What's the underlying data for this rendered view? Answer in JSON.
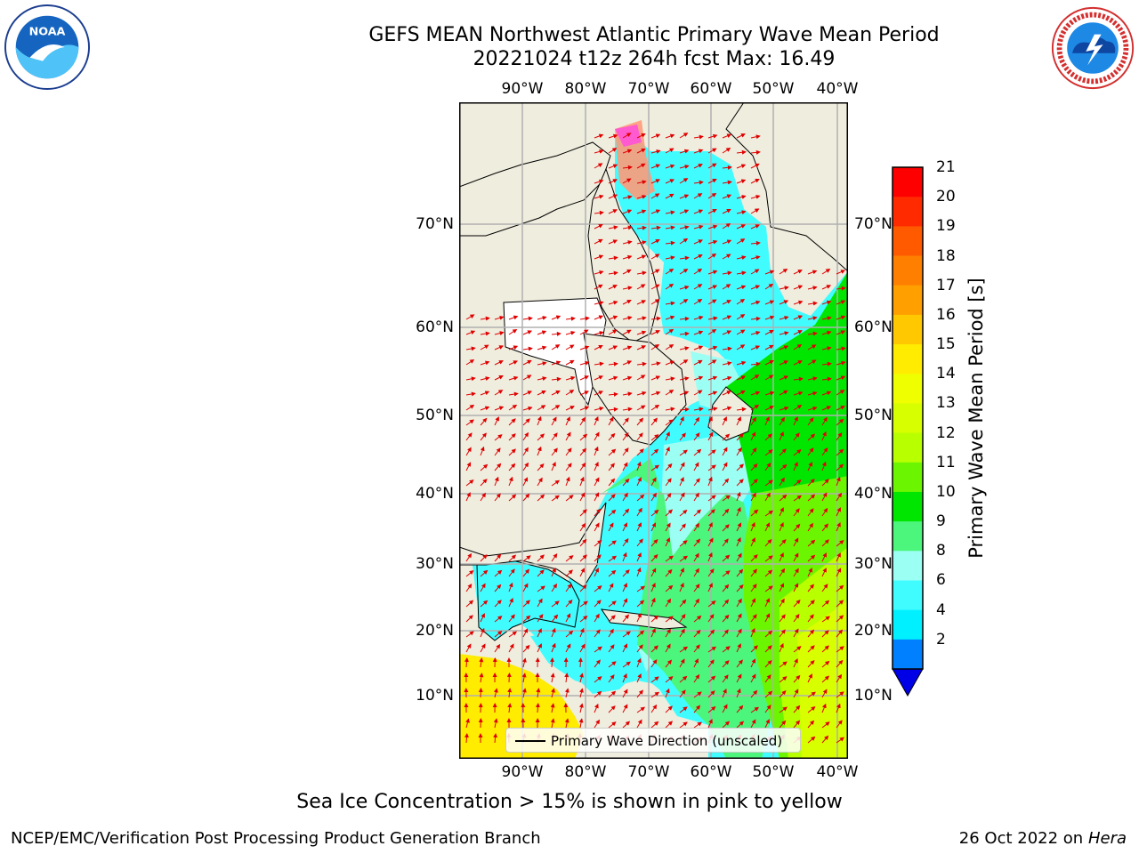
{
  "header": {
    "title_line1": "GEFS MEAN Northwest Atlantic Primary Wave Mean Period",
    "title_line2": "20221024 t12z 264h fcst   Max: 16.49"
  },
  "logos": {
    "left": {
      "text": "NOAA",
      "ring_text": "NATIONAL OCEANIC AND ATMOSPHERIC ADMINISTRATION · U.S. DEPARTMENT OF COMMERCE"
    },
    "right": {
      "ring_text": "NATIONAL WEATHER SERVICE"
    }
  },
  "map": {
    "lon_labels": [
      "90°W",
      "80°W",
      "70°W",
      "60°W",
      "50°W",
      "40°W"
    ],
    "lat_labels": [
      "70°N",
      "60°N",
      "50°N",
      "40°N",
      "30°N",
      "20°N",
      "10°N"
    ],
    "legend_label": "Primary Wave Direction (unscaled)",
    "colors": {
      "land": "#efedde",
      "ocean_frame": "#ffffff",
      "grid": "#b0b0b0",
      "arrow": "#e00000"
    }
  },
  "colorbar": {
    "title": "Primary Wave Mean Period [s]",
    "ticks": [
      "21",
      "20",
      "19",
      "18",
      "17",
      "16",
      "15",
      "14",
      "13",
      "12",
      "11",
      "10",
      "9",
      "8",
      "6",
      "4",
      "2"
    ],
    "bands_top_to_bottom": [
      "#ff0000",
      "#ff2a00",
      "#ff5a00",
      "#ff7f00",
      "#ffa000",
      "#ffc800",
      "#ffec00",
      "#f0ff00",
      "#d8ff00",
      "#b8ff00",
      "#6cf500",
      "#00e600",
      "#4cf57c",
      "#9cfff4",
      "#40fcff",
      "#00f0ff",
      "#0080ff"
    ],
    "under_color": "#0000e6"
  },
  "caption": "Sea Ice Concentration > 15% is shown in pink to yellow",
  "footer": {
    "left": "NCEP/EMC/Verification Post Processing Product Generation Branch",
    "right_date": "26 Oct 2022 on",
    "right_host": "Hera"
  }
}
